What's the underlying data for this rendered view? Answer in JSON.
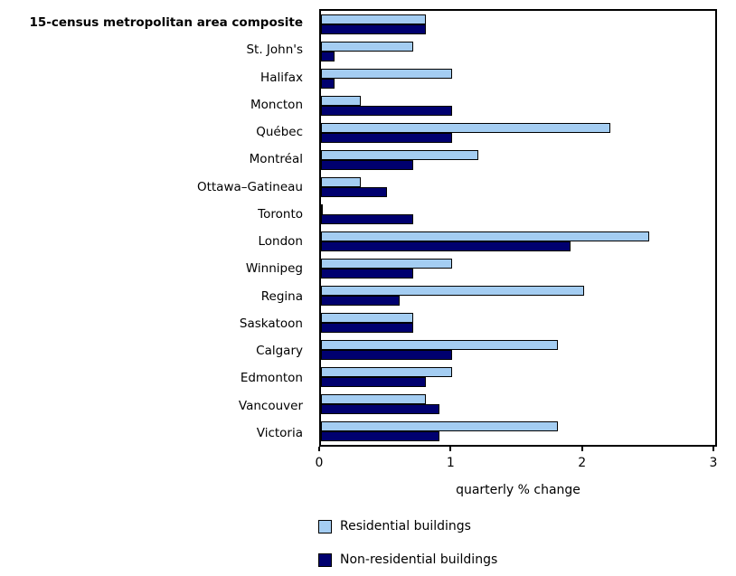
{
  "chart_data": {
    "type": "bar",
    "orientation": "horizontal",
    "categories": [
      "15-census metropolitan area composite",
      "St. John's",
      "Halifax",
      "Moncton",
      "Québec",
      "Montréal",
      "Ottawa–Gatineau",
      "Toronto",
      "London",
      "Winnipeg",
      "Regina",
      "Saskatoon",
      "Calgary",
      "Edmonton",
      "Vancouver",
      "Victoria"
    ],
    "series": [
      {
        "name": "Residential buildings",
        "color": "#a4cdf2",
        "values": [
          0.8,
          0.7,
          1.0,
          0.3,
          2.2,
          1.2,
          0.3,
          0.0,
          2.5,
          1.0,
          2.0,
          0.7,
          1.8,
          1.0,
          0.8,
          1.8
        ]
      },
      {
        "name": "Non-residential buildings",
        "color": "#00006f",
        "values": [
          0.8,
          0.1,
          0.1,
          1.0,
          1.0,
          0.7,
          0.5,
          0.7,
          1.9,
          0.7,
          0.6,
          0.7,
          1.0,
          0.8,
          0.9,
          0.9
        ]
      }
    ],
    "xlabel": "quarterly % change",
    "xlim": [
      0,
      3
    ],
    "xticks": [
      0,
      1,
      2,
      3
    ],
    "grid": false,
    "legend_position": "bottom-left",
    "colors": {
      "bar_outline": "#000000",
      "axis": "#000000",
      "background": "#ffffff"
    }
  }
}
